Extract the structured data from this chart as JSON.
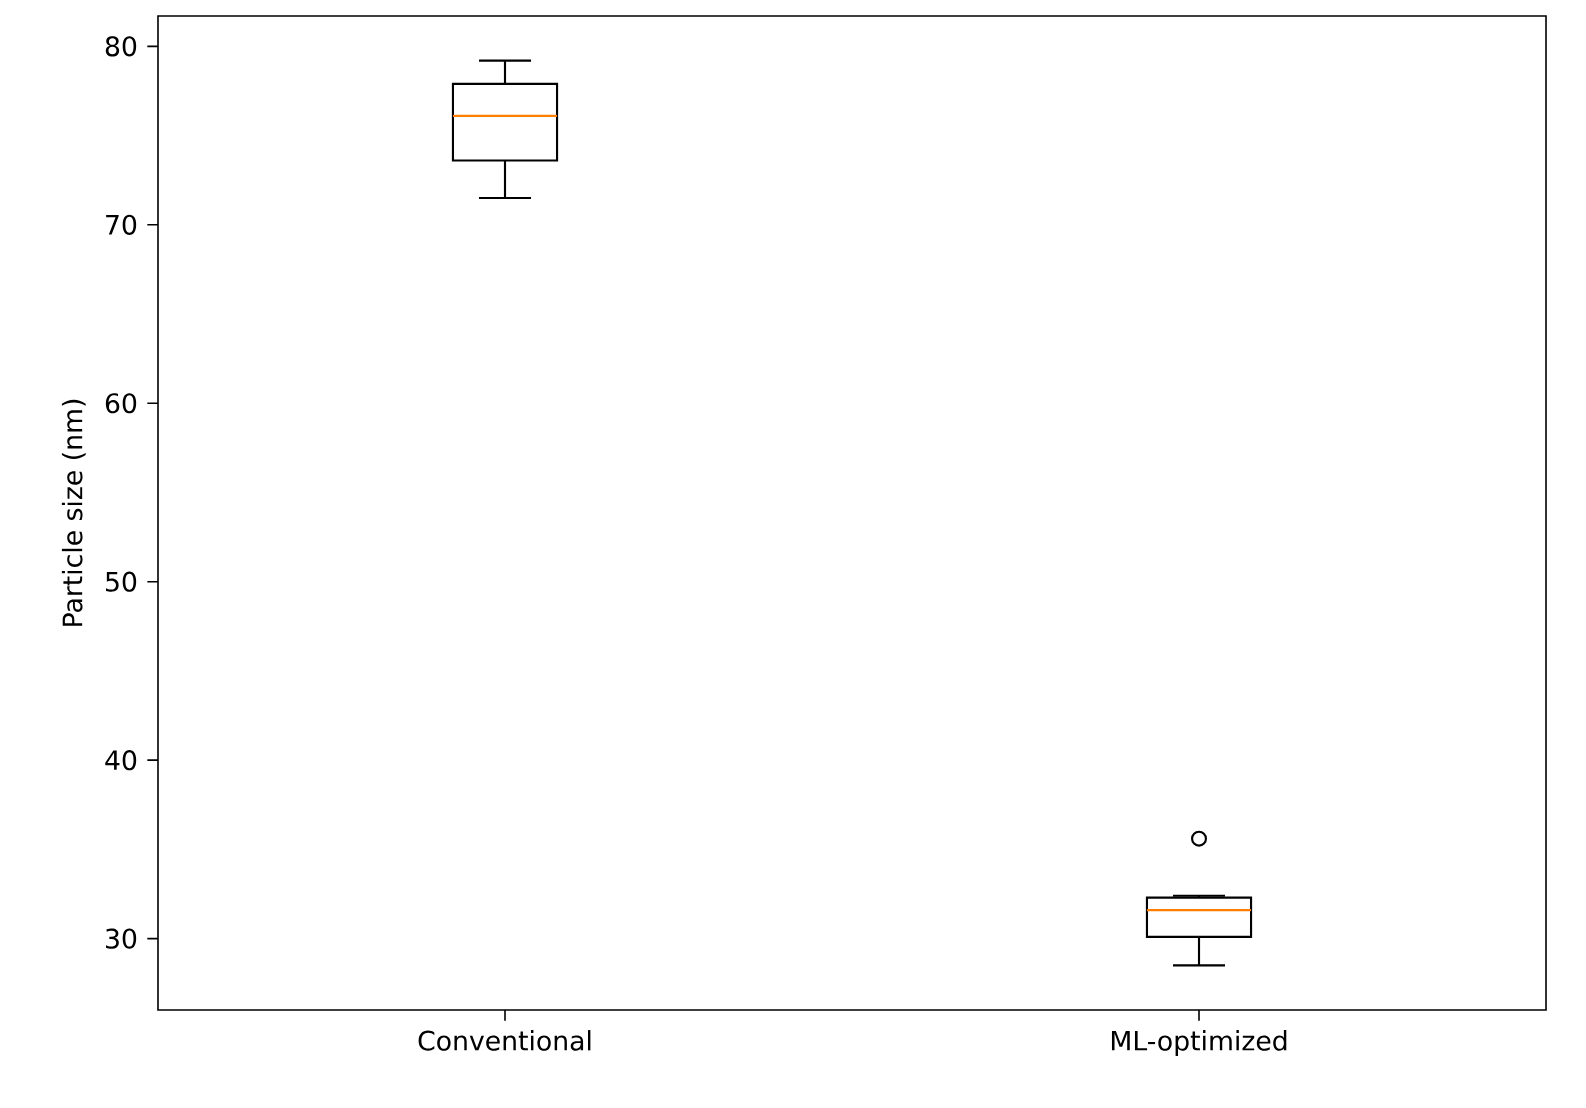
{
  "chart_data": {
    "type": "box",
    "ylabel": "Particle size (nm)",
    "categories": [
      "Conventional",
      "ML-optimized"
    ],
    "boxes": [
      {
        "low": 71.5,
        "q1": 73.6,
        "median": 76.1,
        "q3": 77.9,
        "high": 79.2
      },
      {
        "low": 28.5,
        "q1": 30.1,
        "median": 31.6,
        "q3": 32.3,
        "high": 32.4,
        "outliers": [
          35.6
        ]
      }
    ],
    "ylim": [
      26,
      81.7
    ],
    "yticks": [
      30,
      40,
      50,
      60,
      70,
      80
    ]
  }
}
